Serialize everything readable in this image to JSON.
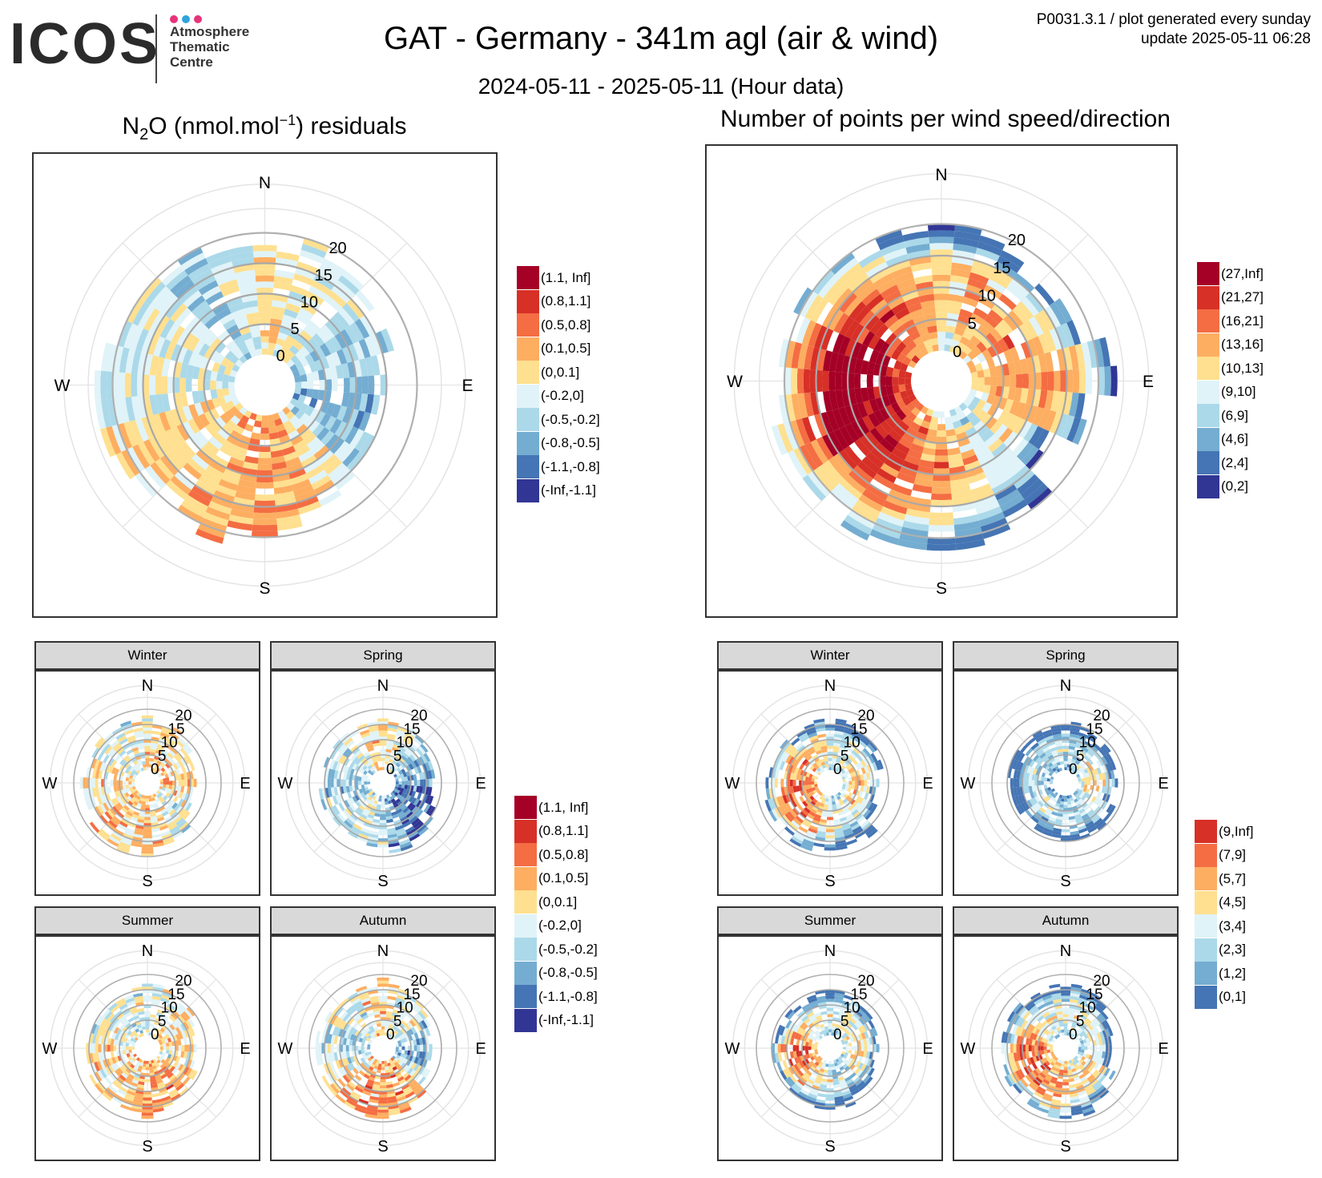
{
  "header": {
    "logo_text": "ICOS",
    "logo_lines": [
      "Atmosphere",
      "Thematic",
      "Centre"
    ],
    "logo_dot_colors": [
      "#e6337a",
      "#2fa3dc",
      "#e6337a"
    ],
    "title": "GAT - Germany - 341m agl (air & wind)",
    "subtitle": "2024-05-11 - 2025-05-11 (Hour data)",
    "corner_line1": "P0031.3.1 / plot generated every sunday",
    "corner_line2": "update  2025-05-11 06:28"
  },
  "panels": {
    "left_title_prefix": "N",
    "left_title_sub": "2",
    "left_title_mid": "O (nmol.mol",
    "left_title_sup": "−1",
    "left_title_suffix": ") residuals",
    "right_title": "Number of points per wind speed/direction",
    "seasons": [
      "Winter",
      "Spring",
      "Summer",
      "Autumn"
    ]
  },
  "compass": {
    "n": "N",
    "e": "E",
    "s": "S",
    "w": "W"
  },
  "speed_ticks": [
    "0",
    "5",
    "10",
    "15",
    "20"
  ],
  "legends": {
    "residuals": {
      "labels": [
        "(1.1, Inf]",
        "(0.8,1.1]",
        "(0.5,0.8]",
        "(0.1,0.5]",
        "(0,0.1]",
        "(-0.2,0]",
        "(-0.5,-0.2]",
        "(-0.8,-0.5]",
        "(-1.1,-0.8]",
        "(-Inf,-1.1]"
      ],
      "colors": [
        "#a50026",
        "#d73027",
        "#f46d43",
        "#fdae61",
        "#fee090",
        "#e0f3f8",
        "#abd9e9",
        "#74add1",
        "#4575b4",
        "#313695"
      ]
    },
    "counts_all": {
      "labels": [
        "(27,Inf]",
        "(21,27]",
        "(16,21]",
        "(13,16]",
        "(10,13]",
        "(9,10]",
        "(6,9]",
        "(4,6]",
        "(2,4]",
        "(0,2]"
      ],
      "colors": [
        "#a50026",
        "#d73027",
        "#f46d43",
        "#fdae61",
        "#fee090",
        "#e0f3f8",
        "#abd9e9",
        "#74add1",
        "#4575b4",
        "#313695"
      ]
    },
    "counts_season": {
      "labels": [
        "(9,Inf]",
        "(7,9]",
        "(5,7]",
        "(4,5]",
        "(3,4]",
        "(2,3]",
        "(1,2]",
        "(0,1]"
      ],
      "colors": [
        "#d73027",
        "#f46d43",
        "#fdae61",
        "#fee090",
        "#e0f3f8",
        "#abd9e9",
        "#74add1",
        "#4575b4"
      ]
    }
  },
  "chart_data": [
    {
      "type": "heatmap",
      "subtype": "polar",
      "title": "N2O (nmol.mol-1) residuals",
      "radial_axis": "wind speed",
      "radial_ticks": [
        0,
        5,
        10,
        15,
        20
      ],
      "angular_axis": "wind direction",
      "max_speed": 20,
      "color_scale": "residuals",
      "extent_by_sector": [
        17,
        18,
        17,
        16,
        14,
        13,
        14,
        17,
        18,
        19,
        20,
        21,
        22,
        22,
        21,
        20,
        19,
        17
      ],
      "dominant_by_sector": [
        4,
        5,
        5,
        6,
        6,
        7,
        6,
        4,
        3,
        3,
        3,
        4,
        4,
        5,
        5,
        5,
        6,
        5
      ]
    },
    {
      "type": "heatmap",
      "subtype": "polar",
      "title": "Number of points per wind speed/direction",
      "radial_axis": "wind speed",
      "radial_ticks": [
        0,
        5,
        10,
        15,
        20
      ],
      "angular_axis": "wind direction",
      "max_speed": 20,
      "color_scale": "counts_all",
      "extent_by_sector": [
        19,
        18,
        17,
        18,
        21,
        19,
        14,
        19,
        21,
        22,
        22,
        21,
        21,
        20,
        20,
        20,
        19,
        19
      ],
      "dominant_by_sector": [
        5,
        4,
        4,
        4,
        4,
        4,
        5,
        6,
        5,
        4,
        3,
        2,
        1,
        1,
        1,
        2,
        3,
        4
      ]
    },
    {
      "type": "heatmap",
      "subtype": "polar",
      "facet": "Winter",
      "color_scale": "residuals",
      "max_speed": 20,
      "extent_by_sector": [
        17,
        15,
        14,
        12,
        11,
        10,
        12,
        15,
        17,
        18,
        19,
        18,
        18,
        17,
        16,
        16,
        15,
        16
      ],
      "dominant_by_sector": [
        4,
        4,
        4,
        4,
        3,
        4,
        5,
        5,
        4,
        4,
        4,
        3,
        4,
        4,
        4,
        5,
        5,
        5
      ]
    },
    {
      "type": "heatmap",
      "subtype": "polar",
      "facet": "Spring",
      "color_scale": "residuals",
      "max_speed": 20,
      "extent_by_sector": [
        16,
        15,
        14,
        13,
        12,
        12,
        15,
        18,
        18,
        17,
        16,
        15,
        16,
        16,
        15,
        15,
        15,
        16
      ],
      "dominant_by_sector": [
        4,
        5,
        6,
        7,
        7,
        8,
        8,
        8,
        7,
        6,
        5,
        5,
        6,
        6,
        6,
        6,
        5,
        4
      ]
    },
    {
      "type": "heatmap",
      "subtype": "polar",
      "facet": "Summer",
      "color_scale": "residuals",
      "max_speed": 20,
      "extent_by_sector": [
        16,
        15,
        14,
        12,
        11,
        11,
        13,
        15,
        16,
        17,
        17,
        17,
        16,
        15,
        14,
        14,
        14,
        15
      ],
      "dominant_by_sector": [
        5,
        5,
        4,
        4,
        4,
        5,
        4,
        3,
        3,
        3,
        4,
        4,
        4,
        4,
        5,
        5,
        5,
        5
      ]
    },
    {
      "type": "heatmap",
      "subtype": "polar",
      "facet": "Autumn",
      "color_scale": "residuals",
      "max_speed": 20,
      "extent_by_sector": [
        17,
        15,
        14,
        12,
        11,
        11,
        13,
        16,
        18,
        18,
        18,
        17,
        17,
        17,
        16,
        16,
        15,
        16
      ],
      "dominant_by_sector": [
        4,
        5,
        5,
        6,
        6,
        7,
        5,
        3,
        3,
        3,
        3,
        4,
        5,
        6,
        6,
        5,
        5,
        4
      ]
    },
    {
      "type": "heatmap",
      "subtype": "polar",
      "facet": "Winter",
      "color_scale": "counts_season",
      "max_speed": 20,
      "extent_by_sector": [
        16,
        15,
        14,
        13,
        12,
        11,
        13,
        16,
        17,
        18,
        18,
        17,
        17,
        16,
        16,
        16,
        15,
        16
      ],
      "dominant_by_sector": [
        5,
        5,
        5,
        4,
        4,
        4,
        4,
        5,
        5,
        4,
        3,
        2,
        2,
        2,
        3,
        3,
        4,
        4
      ]
    },
    {
      "type": "heatmap",
      "subtype": "polar",
      "facet": "Spring",
      "color_scale": "counts_season",
      "max_speed": 20,
      "extent_by_sector": [
        15,
        14,
        13,
        13,
        12,
        11,
        14,
        15,
        15,
        14,
        13,
        12,
        13,
        14,
        14,
        14,
        14,
        15
      ],
      "dominant_by_sector": [
        6,
        6,
        5,
        5,
        4,
        4,
        5,
        6,
        6,
        6,
        6,
        5,
        6,
        6,
        6,
        6,
        6,
        6
      ]
    },
    {
      "type": "heatmap",
      "subtype": "polar",
      "facet": "Summer",
      "color_scale": "counts_season",
      "max_speed": 20,
      "extent_by_sector": [
        15,
        14,
        13,
        12,
        11,
        10,
        12,
        14,
        15,
        15,
        15,
        14,
        14,
        14,
        13,
        13,
        13,
        14
      ],
      "dominant_by_sector": [
        5,
        5,
        5,
        4,
        4,
        4,
        5,
        6,
        6,
        5,
        4,
        3,
        2,
        2,
        3,
        4,
        5,
        5
      ]
    },
    {
      "type": "heatmap",
      "subtype": "polar",
      "facet": "Autumn",
      "color_scale": "counts_season",
      "max_speed": 20,
      "extent_by_sector": [
        16,
        15,
        14,
        12,
        11,
        11,
        13,
        16,
        18,
        19,
        18,
        17,
        17,
        17,
        16,
        16,
        15,
        16
      ],
      "dominant_by_sector": [
        5,
        5,
        5,
        5,
        5,
        5,
        4,
        4,
        4,
        3,
        3,
        2,
        2,
        2,
        3,
        4,
        5,
        5
      ]
    }
  ]
}
